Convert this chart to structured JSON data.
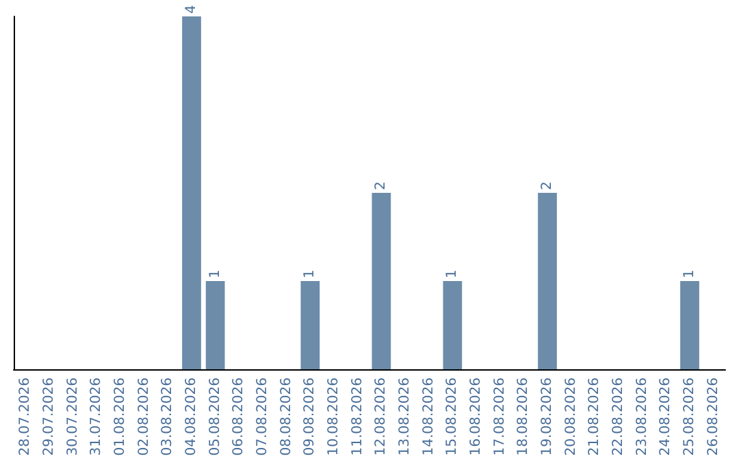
{
  "chart_data": {
    "type": "bar",
    "categories": [
      "28.07.2026",
      "29.07.2026",
      "30.07.2026",
      "31.07.2026",
      "01.08.2026",
      "02.08.2026",
      "03.08.2026",
      "04.08.2026",
      "05.08.2026",
      "06.08.2026",
      "07.08.2026",
      "08.08.2026",
      "09.08.2026",
      "10.08.2026",
      "11.08.2026",
      "12.08.2026",
      "13.08.2026",
      "14.08.2026",
      "15.08.2026",
      "16.08.2026",
      "17.08.2026",
      "18.08.2026",
      "19.08.2026",
      "20.08.2026",
      "21.08.2026",
      "22.08.2026",
      "23.08.2026",
      "24.08.2026",
      "25.08.2026",
      "26.08.2026"
    ],
    "values": [
      0,
      0,
      0,
      0,
      0,
      0,
      0,
      4,
      1,
      0,
      0,
      0,
      1,
      0,
      0,
      2,
      0,
      0,
      1,
      0,
      0,
      0,
      2,
      0,
      0,
      0,
      0,
      0,
      1,
      0
    ],
    "value_labels": [
      null,
      null,
      null,
      null,
      null,
      null,
      null,
      "4",
      "1",
      null,
      null,
      null,
      "1",
      null,
      null,
      "2",
      null,
      null,
      "1",
      null,
      null,
      null,
      "2",
      null,
      null,
      null,
      null,
      null,
      "1",
      null
    ],
    "color": "#6c8caa",
    "grid": false,
    "tick_labels": "x"
  }
}
